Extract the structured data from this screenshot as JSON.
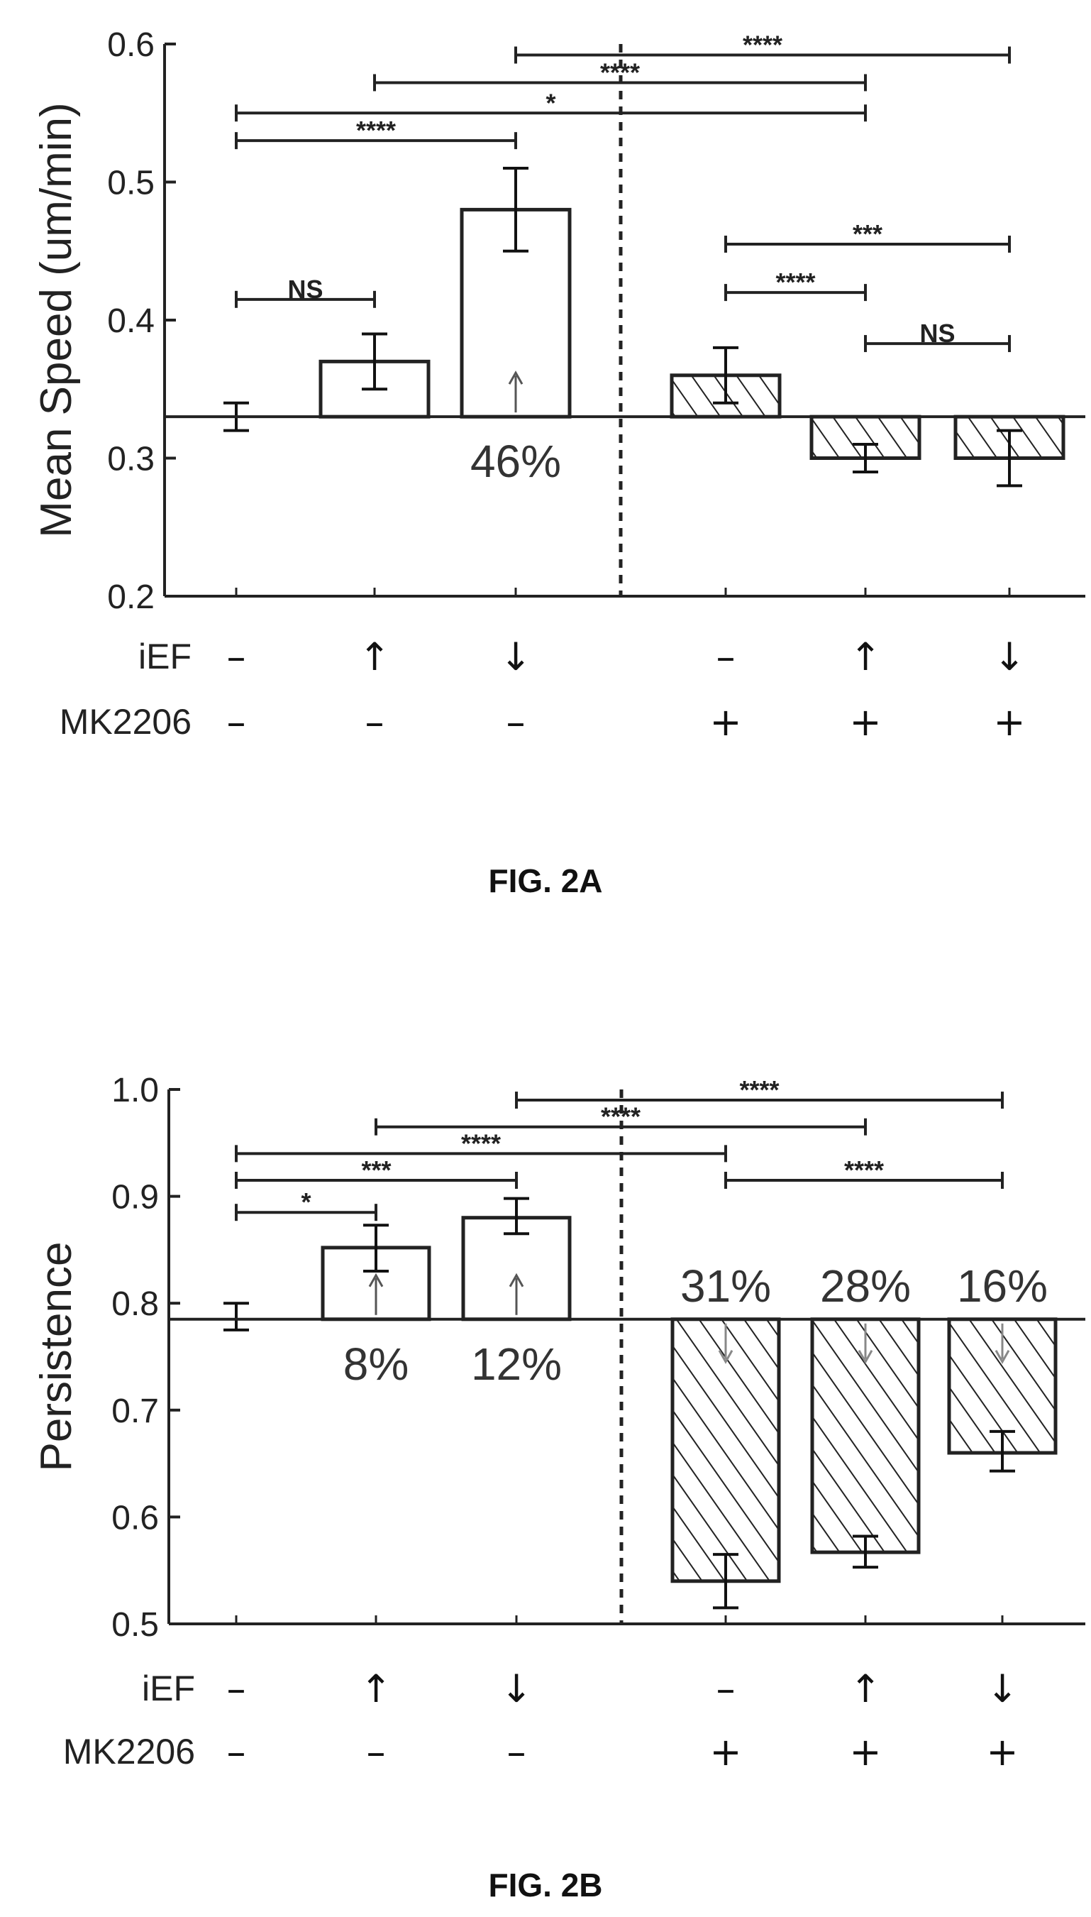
{
  "chart_data": [
    {
      "type": "bar",
      "caption": "FIG. 2A",
      "ylabel": "Mean Speed (um/min)",
      "ylim": [
        0.2,
        0.6
      ],
      "yticks": [
        "0.2",
        "0.3",
        "0.4",
        "0.5",
        "0.6"
      ],
      "baseline": 0.33,
      "groups": [
        {
          "iEF": "–",
          "MK2206": "–",
          "value": 0.33,
          "err": [
            0.32,
            0.34
          ],
          "hatched": false,
          "drawn": false,
          "label": ""
        },
        {
          "iEF": "↑",
          "MK2206": "–",
          "value": 0.37,
          "err": [
            0.35,
            0.39
          ],
          "hatched": false,
          "drawn": true,
          "label": ""
        },
        {
          "iEF": "↓",
          "MK2206": "–",
          "value": 0.48,
          "err": [
            0.45,
            0.51
          ],
          "hatched": false,
          "drawn": true,
          "label": "46%"
        },
        {
          "iEF": "–",
          "MK2206": "+",
          "value": 0.36,
          "err": [
            0.34,
            0.38
          ],
          "hatched": true,
          "drawn": true,
          "label": ""
        },
        {
          "iEF": "↑",
          "MK2206": "+",
          "value": 0.3,
          "err": [
            0.29,
            0.31
          ],
          "hatched": true,
          "drawn": true,
          "label": ""
        },
        {
          "iEF": "↓",
          "MK2206": "+",
          "value": 0.3,
          "err": [
            0.28,
            0.32
          ],
          "hatched": true,
          "drawn": true,
          "label": ""
        }
      ],
      "brackets": [
        {
          "from": 2,
          "to": 5,
          "label": "****",
          "level": 0.592
        },
        {
          "from": 1,
          "to": 4,
          "label": "****",
          "level": 0.572
        },
        {
          "from": 0,
          "to": 4,
          "label": "*",
          "level": 0.55
        },
        {
          "from": 0,
          "to": 2,
          "label": "****",
          "level": 0.53
        },
        {
          "from": 3,
          "to": 5,
          "label": "***",
          "level": 0.455
        },
        {
          "from": 3,
          "to": 4,
          "label": "****",
          "level": 0.42
        },
        {
          "from": 0,
          "to": 1,
          "label": "NS",
          "level": 0.415
        },
        {
          "from": 4,
          "to": 5,
          "label": "NS",
          "level": 0.383
        }
      ],
      "row_labels": [
        "iEF",
        "MK2206"
      ]
    },
    {
      "type": "bar",
      "caption": "FIG. 2B",
      "ylabel": "Persistence",
      "ylim": [
        0.5,
        1.0
      ],
      "yticks": [
        "0.5",
        "0.6",
        "0.7",
        "0.8",
        "0.9",
        "1.0"
      ],
      "baseline": 0.785,
      "groups": [
        {
          "iEF": "–",
          "MK2206": "–",
          "value": 0.785,
          "err": [
            0.775,
            0.8
          ],
          "hatched": false,
          "drawn": false,
          "label": ""
        },
        {
          "iEF": "↑",
          "MK2206": "–",
          "value": 0.852,
          "err": [
            0.83,
            0.873
          ],
          "hatched": false,
          "drawn": true,
          "label": "8%"
        },
        {
          "iEF": "↓",
          "MK2206": "–",
          "value": 0.88,
          "err": [
            0.865,
            0.898
          ],
          "hatched": false,
          "drawn": true,
          "label": "12%"
        },
        {
          "iEF": "–",
          "MK2206": "+",
          "value": 0.54,
          "err": [
            0.515,
            0.565
          ],
          "hatched": true,
          "drawn": true,
          "label": "31%"
        },
        {
          "iEF": "↑",
          "MK2206": "+",
          "value": 0.567,
          "err": [
            0.553,
            0.582
          ],
          "hatched": true,
          "drawn": true,
          "label": "28%"
        },
        {
          "iEF": "↓",
          "MK2206": "+",
          "value": 0.66,
          "err": [
            0.643,
            0.68
          ],
          "hatched": true,
          "drawn": true,
          "label": "16%"
        }
      ],
      "brackets": [
        {
          "from": 2,
          "to": 5,
          "label": "****",
          "level": 0.99
        },
        {
          "from": 1,
          "to": 4,
          "label": "****",
          "level": 0.965
        },
        {
          "from": 0,
          "to": 3,
          "label": "****",
          "level": 0.94
        },
        {
          "from": 0,
          "to": 2,
          "label": "***",
          "level": 0.915
        },
        {
          "from": 0,
          "to": 1,
          "label": "*",
          "level": 0.885
        },
        {
          "from": 3,
          "to": 5,
          "label": "****",
          "level": 0.915
        }
      ],
      "row_labels": [
        "iEF",
        "MK2206"
      ]
    }
  ]
}
